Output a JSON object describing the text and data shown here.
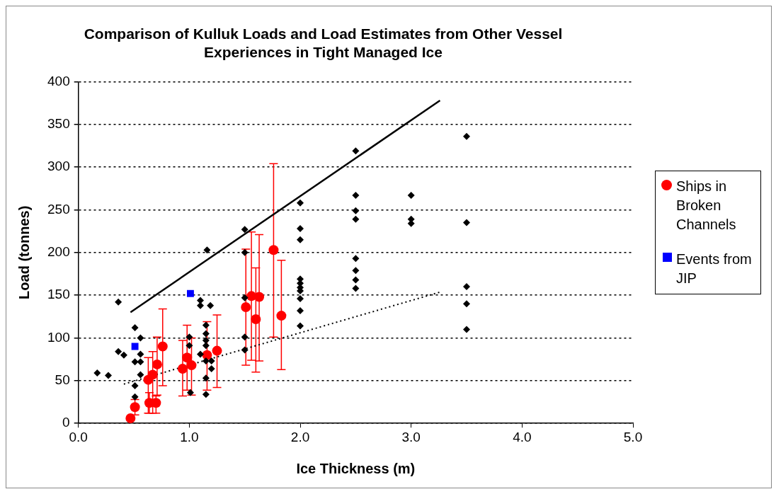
{
  "chart_data": {
    "type": "scatter",
    "title": "Comparison of Kulluk Loads and Load Estimates from Other Vessel Experiences in Tight Managed Ice",
    "xlabel": "Ice Thickness (m)",
    "ylabel": "Load (tonnes)",
    "xlim": [
      0,
      5
    ],
    "xticks": [
      {
        "value": 0,
        "label": "0.0"
      },
      {
        "value": 1,
        "label": "1.0"
      },
      {
        "value": 2,
        "label": "2.0"
      },
      {
        "value": 3,
        "label": "3.0"
      },
      {
        "value": 4,
        "label": "4.0"
      },
      {
        "value": 5,
        "label": "5.0"
      }
    ],
    "ylim": [
      0,
      400
    ],
    "yticks": [
      0,
      50,
      100,
      150,
      200,
      250,
      300,
      350,
      400
    ],
    "grid": "y",
    "legend": "right",
    "series": [
      {
        "type": "scatter",
        "color": "#000000",
        "marker": "diamond",
        "x": [
          0.17,
          0.27,
          0.36,
          0.36,
          0.41,
          0.51,
          0.56,
          0.56,
          0.51,
          0.56,
          0.56,
          0.51,
          0.51,
          1.0,
          1.0,
          1.01,
          1.1,
          1.1,
          1.19,
          1.15,
          1.15,
          1.15,
          1.15,
          1.1,
          1.15,
          1.2,
          1.2,
          1.15,
          1.15,
          1.16,
          1.5,
          1.5,
          1.5,
          1.5,
          1.5,
          2.0,
          2.0,
          2.0,
          2.0,
          2.0,
          2.0,
          2.0,
          2.0,
          2.0,
          2.0,
          2.5,
          2.5,
          2.5,
          2.5,
          2.5,
          2.5,
          2.5,
          2.5,
          3.0,
          3.0,
          3.0,
          3.5,
          3.5,
          3.5,
          3.5,
          3.5
        ],
        "values": [
          59,
          56,
          142,
          84,
          80,
          112,
          100,
          81,
          72,
          72,
          57,
          44,
          31,
          101,
          91,
          36,
          144,
          138,
          138,
          115,
          105,
          97,
          91,
          81,
          73,
          73,
          64,
          53,
          34,
          203,
          227,
          200,
          147,
          101,
          86,
          258,
          228,
          215,
          169,
          164,
          159,
          155,
          146,
          132,
          114,
          319,
          267,
          249,
          239,
          193,
          179,
          168,
          158,
          267,
          239,
          234,
          336,
          235,
          160,
          140,
          110
        ]
      },
      {
        "type": "scatter",
        "name": "Ships in Broken Channels",
        "color": "#ff0000",
        "marker": "circle",
        "x": [
          0.47,
          0.51,
          0.63,
          0.67,
          0.64,
          0.7,
          0.71,
          0.76,
          0.94,
          0.98,
          1.02,
          1.16,
          1.25,
          1.51,
          1.56,
          1.6,
          1.63,
          1.76,
          1.83
        ],
        "values": [
          6,
          19,
          51,
          57,
          24,
          24,
          69,
          90,
          64,
          77,
          68,
          80,
          85,
          136,
          149,
          122,
          148,
          203,
          126
        ],
        "errors": [
          null,
          [
            10,
            28
          ],
          [
            12,
            77
          ],
          [
            12,
            84
          ],
          [
            12,
            36
          ],
          [
            12,
            32
          ],
          [
            33,
            101
          ],
          [
            44,
            134
          ],
          [
            32,
            97
          ],
          [
            39,
            115
          ],
          [
            33,
            100
          ],
          [
            39,
            119
          ],
          [
            42,
            127
          ],
          [
            68,
            204
          ],
          [
            74,
            224
          ],
          [
            60,
            182
          ],
          [
            73,
            221
          ],
          [
            101,
            304
          ],
          [
            63,
            191
          ]
        ]
      },
      {
        "type": "scatter",
        "name": "Events from JIP",
        "color": "#0000ff",
        "marker": "square",
        "x": [
          0.51,
          1.01
        ],
        "values": [
          90,
          152
        ]
      },
      {
        "type": "line",
        "color": "#000000",
        "line_style": "solid",
        "x": [
          0.47,
          3.26
        ],
        "values": [
          130,
          378
        ]
      },
      {
        "type": "line",
        "color": "#000000",
        "line_style": "dotted",
        "x": [
          0.41,
          3.27
        ],
        "values": [
          46,
          154
        ]
      }
    ]
  }
}
